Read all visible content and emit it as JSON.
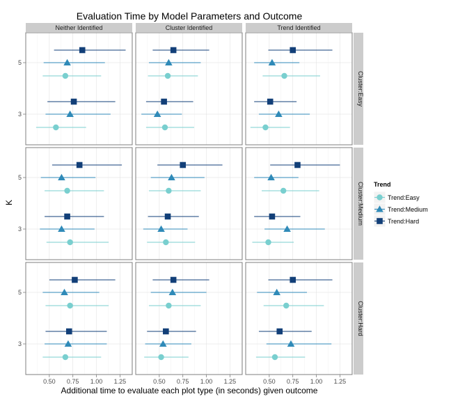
{
  "chart_data": {
    "type": "scatter",
    "title": "Evaluation Time by Model Parameters and Outcome",
    "xlabel": "Additional time to evaluate each plot type (in seconds) given outcome",
    "ylabel": "K",
    "xlim": [
      0.25,
      1.38
    ],
    "x_ticks": [
      "0.50",
      "0.75",
      "1.00",
      "1.25"
    ],
    "x_tick_values": [
      0.5,
      0.75,
      1.0,
      1.25
    ],
    "y_ticks": [
      "5",
      "3"
    ],
    "col_facets": [
      "Neither Identified",
      "Cluster Identified",
      "Trend Identified"
    ],
    "row_facets": [
      "Cluster:Easy",
      "Cluster:Medium",
      "Cluster:Hard"
    ],
    "legend": {
      "title": "Trend",
      "position": "right",
      "items": [
        {
          "label": "Trend:Easy",
          "shape": "circle",
          "color": "#79cfcf"
        },
        {
          "label": "Trend:Medium",
          "shape": "triangle",
          "color": "#2f8ab8"
        },
        {
          "label": "Trend:Hard",
          "shape": "square",
          "color": "#123f78"
        }
      ]
    },
    "grid": true,
    "panels": [
      {
        "row": "Cluster:Easy",
        "col": "Neither Identified",
        "points": [
          {
            "k": "5",
            "trend": "Trend:Hard",
            "x": 0.85,
            "lo": 0.55,
            "hi": 1.31
          },
          {
            "k": "5",
            "trend": "Trend:Medium",
            "x": 0.69,
            "lo": 0.44,
            "hi": 1.09
          },
          {
            "k": "5",
            "trend": "Trend:Easy",
            "x": 0.67,
            "lo": 0.43,
            "hi": 1.05
          },
          {
            "k": "3",
            "trend": "Trend:Hard",
            "x": 0.76,
            "lo": 0.48,
            "hi": 1.2
          },
          {
            "k": "3",
            "trend": "Trend:Medium",
            "x": 0.72,
            "lo": 0.46,
            "hi": 1.15
          },
          {
            "k": "3",
            "trend": "Trend:Easy",
            "x": 0.57,
            "lo": 0.36,
            "hi": 0.89
          }
        ]
      },
      {
        "row": "Cluster:Easy",
        "col": "Cluster Identified",
        "points": [
          {
            "k": "5",
            "trend": "Trend:Hard",
            "x": 0.65,
            "lo": 0.43,
            "hi": 1.03
          },
          {
            "k": "5",
            "trend": "Trend:Medium",
            "x": 0.6,
            "lo": 0.39,
            "hi": 0.94
          },
          {
            "k": "5",
            "trend": "Trend:Easy",
            "x": 0.59,
            "lo": 0.38,
            "hi": 0.91
          },
          {
            "k": "3",
            "trend": "Trend:Hard",
            "x": 0.55,
            "lo": 0.36,
            "hi": 0.86
          },
          {
            "k": "3",
            "trend": "Trend:Medium",
            "x": 0.48,
            "lo": 0.31,
            "hi": 0.74
          },
          {
            "k": "3",
            "trend": "Trend:Easy",
            "x": 0.56,
            "lo": 0.36,
            "hi": 0.87
          }
        ]
      },
      {
        "row": "Cluster:Easy",
        "col": "Trend Identified",
        "points": [
          {
            "k": "5",
            "trend": "Trend:Hard",
            "x": 0.75,
            "lo": 0.49,
            "hi": 1.17
          },
          {
            "k": "5",
            "trend": "Trend:Medium",
            "x": 0.53,
            "lo": 0.34,
            "hi": 0.82
          },
          {
            "k": "5",
            "trend": "Trend:Easy",
            "x": 0.66,
            "lo": 0.43,
            "hi": 1.04
          },
          {
            "k": "3",
            "trend": "Trend:Hard",
            "x": 0.51,
            "lo": 0.34,
            "hi": 0.79
          },
          {
            "k": "3",
            "trend": "Trend:Medium",
            "x": 0.6,
            "lo": 0.39,
            "hi": 0.93
          },
          {
            "k": "3",
            "trend": "Trend:Easy",
            "x": 0.46,
            "lo": 0.3,
            "hi": 0.72
          }
        ]
      },
      {
        "row": "Cluster:Medium",
        "col": "Neither Identified",
        "points": [
          {
            "k": "5",
            "trend": "Trend:Hard",
            "x": 0.82,
            "lo": 0.53,
            "hi": 1.27
          },
          {
            "k": "5",
            "trend": "Trend:Medium",
            "x": 0.63,
            "lo": 0.41,
            "hi": 0.99
          },
          {
            "k": "5",
            "trend": "Trend:Easy",
            "x": 0.69,
            "lo": 0.45,
            "hi": 1.08
          },
          {
            "k": "3",
            "trend": "Trend:Hard",
            "x": 0.69,
            "lo": 0.45,
            "hi": 1.08
          },
          {
            "k": "3",
            "trend": "Trend:Medium",
            "x": 0.63,
            "lo": 0.4,
            "hi": 0.98
          },
          {
            "k": "3",
            "trend": "Trend:Easy",
            "x": 0.72,
            "lo": 0.47,
            "hi": 1.13
          }
        ]
      },
      {
        "row": "Cluster:Medium",
        "col": "Cluster Identified",
        "points": [
          {
            "k": "5",
            "trend": "Trend:Hard",
            "x": 0.75,
            "lo": 0.48,
            "hi": 1.17
          },
          {
            "k": "5",
            "trend": "Trend:Medium",
            "x": 0.63,
            "lo": 0.41,
            "hi": 0.98
          },
          {
            "k": "5",
            "trend": "Trend:Easy",
            "x": 0.6,
            "lo": 0.39,
            "hi": 0.94
          },
          {
            "k": "3",
            "trend": "Trend:Hard",
            "x": 0.59,
            "lo": 0.38,
            "hi": 0.92
          },
          {
            "k": "3",
            "trend": "Trend:Medium",
            "x": 0.52,
            "lo": 0.33,
            "hi": 0.8
          },
          {
            "k": "3",
            "trend": "Trend:Easy",
            "x": 0.57,
            "lo": 0.37,
            "hi": 0.88
          }
        ]
      },
      {
        "row": "Cluster:Medium",
        "col": "Trend Identified",
        "points": [
          {
            "k": "5",
            "trend": "Trend:Hard",
            "x": 0.8,
            "lo": 0.51,
            "hi": 1.25
          },
          {
            "k": "5",
            "trend": "Trend:Medium",
            "x": 0.52,
            "lo": 0.34,
            "hi": 0.81
          },
          {
            "k": "5",
            "trend": "Trend:Easy",
            "x": 0.65,
            "lo": 0.42,
            "hi": 1.03
          },
          {
            "k": "3",
            "trend": "Trend:Hard",
            "x": 0.53,
            "lo": 0.34,
            "hi": 0.83
          },
          {
            "k": "3",
            "trend": "Trend:Medium",
            "x": 0.69,
            "lo": 0.45,
            "hi": 1.09
          },
          {
            "k": "3",
            "trend": "Trend:Easy",
            "x": 0.49,
            "lo": 0.32,
            "hi": 0.76
          }
        ]
      },
      {
        "row": "Cluster:Hard",
        "col": "Neither Identified",
        "points": [
          {
            "k": "5",
            "trend": "Trend:Hard",
            "x": 0.77,
            "lo": 0.5,
            "hi": 1.2
          },
          {
            "k": "5",
            "trend": "Trend:Medium",
            "x": 0.66,
            "lo": 0.43,
            "hi": 1.03
          },
          {
            "k": "5",
            "trend": "Trend:Easy",
            "x": 0.72,
            "lo": 0.46,
            "hi": 1.13
          },
          {
            "k": "3",
            "trend": "Trend:Hard",
            "x": 0.71,
            "lo": 0.46,
            "hi": 1.11
          },
          {
            "k": "3",
            "trend": "Trend:Medium",
            "x": 0.7,
            "lo": 0.45,
            "hi": 1.11
          },
          {
            "k": "3",
            "trend": "Trend:Easy",
            "x": 0.67,
            "lo": 0.43,
            "hi": 1.05
          }
        ]
      },
      {
        "row": "Cluster:Hard",
        "col": "Cluster Identified",
        "points": [
          {
            "k": "5",
            "trend": "Trend:Hard",
            "x": 0.65,
            "lo": 0.43,
            "hi": 1.03
          },
          {
            "k": "5",
            "trend": "Trend:Medium",
            "x": 0.64,
            "lo": 0.41,
            "hi": 1.0
          },
          {
            "k": "5",
            "trend": "Trend:Easy",
            "x": 0.6,
            "lo": 0.39,
            "hi": 0.94
          },
          {
            "k": "3",
            "trend": "Trend:Hard",
            "x": 0.57,
            "lo": 0.37,
            "hi": 0.89
          },
          {
            "k": "3",
            "trend": "Trend:Medium",
            "x": 0.54,
            "lo": 0.35,
            "hi": 0.84
          },
          {
            "k": "3",
            "trend": "Trend:Easy",
            "x": 0.52,
            "lo": 0.34,
            "hi": 0.81
          }
        ]
      },
      {
        "row": "Cluster:Hard",
        "col": "Trend Identified",
        "points": [
          {
            "k": "5",
            "trend": "Trend:Hard",
            "x": 0.75,
            "lo": 0.49,
            "hi": 1.17
          },
          {
            "k": "5",
            "trend": "Trend:Medium",
            "x": 0.58,
            "lo": 0.37,
            "hi": 0.9
          },
          {
            "k": "5",
            "trend": "Trend:Easy",
            "x": 0.68,
            "lo": 0.44,
            "hi": 1.08
          },
          {
            "k": "3",
            "trend": "Trend:Hard",
            "x": 0.61,
            "lo": 0.39,
            "hi": 0.95
          },
          {
            "k": "3",
            "trend": "Trend:Medium",
            "x": 0.73,
            "lo": 0.47,
            "hi": 1.16
          },
          {
            "k": "3",
            "trend": "Trend:Easy",
            "x": 0.56,
            "lo": 0.36,
            "hi": 0.88
          }
        ]
      }
    ]
  }
}
